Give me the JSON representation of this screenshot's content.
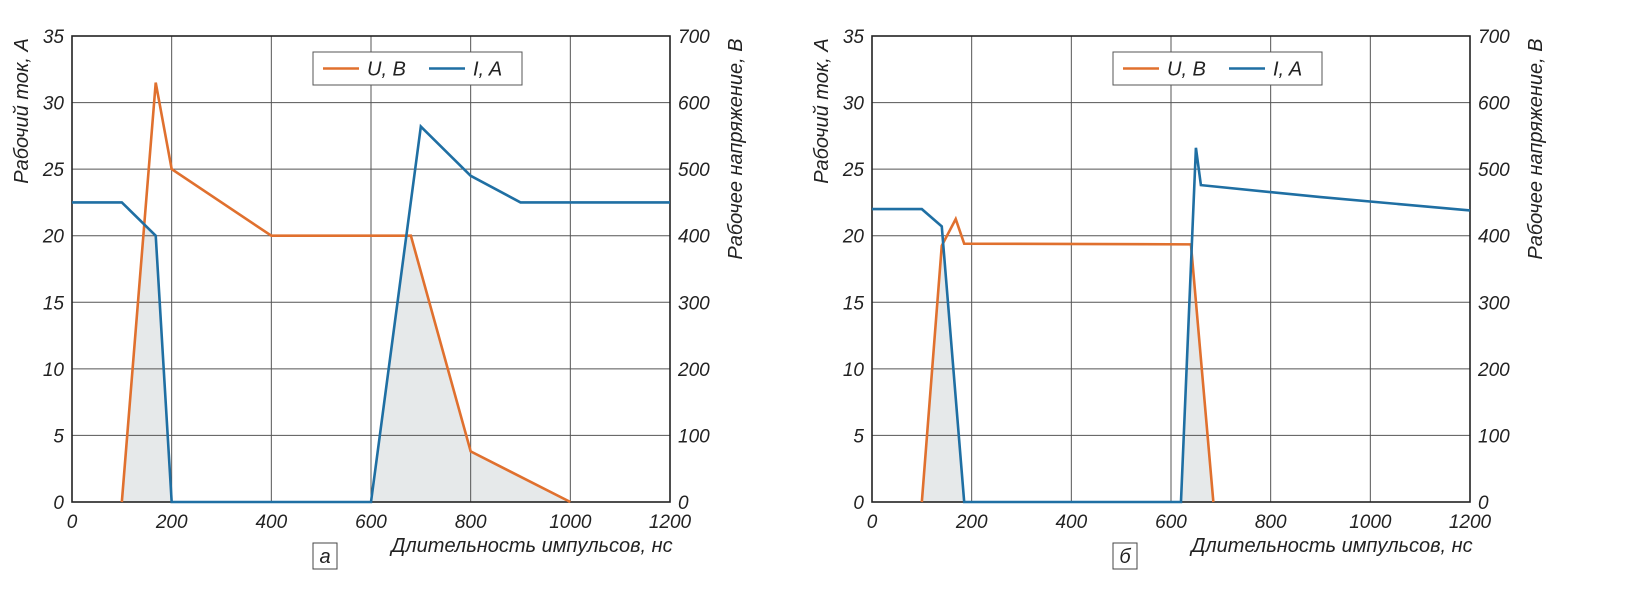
{
  "chart_data": [
    {
      "type": "line",
      "panel_label": "а",
      "xlabel": "Длительность импульсов, нс",
      "ylabel_left": "Рабочий ток, А",
      "ylabel_right": "Рабочее напряжение, В",
      "xlim": [
        0,
        1200
      ],
      "ylim_left": [
        0,
        35
      ],
      "ylim_right": [
        0,
        700
      ],
      "x_ticks": [
        "0",
        "200",
        "400",
        "600",
        "800",
        "1000",
        "1200"
      ],
      "y_left_ticks": [
        "0",
        "5",
        "10",
        "15",
        "20",
        "25",
        "30",
        "35"
      ],
      "y_right_ticks": [
        "0",
        "100",
        "200",
        "300",
        "400",
        "500",
        "600",
        "700"
      ],
      "grid": true,
      "legend_position": "top-center",
      "series": [
        {
          "name": "U, B",
          "axis": "right",
          "color": "#e0702e",
          "x": [
            100,
            168,
            200,
            400,
            680,
            800,
            1000
          ],
          "y": [
            0,
            630,
            500,
            400,
            400,
            76,
            0
          ]
        },
        {
          "name": "I, A",
          "axis": "left",
          "color": "#1f6fa3",
          "x": [
            0,
            100,
            168,
            200,
            600,
            700,
            800,
            900,
            1200
          ],
          "y": [
            22.5,
            22.5,
            20,
            0,
            0,
            28.2,
            24.5,
            22.5,
            22.5
          ]
        }
      ]
    },
    {
      "type": "line",
      "panel_label": "б",
      "xlabel": "Длительность импульсов, нс",
      "ylabel_left": "Рабочий ток, А",
      "ylabel_right": "Рабочее напряжение, В",
      "xlim": [
        0,
        1200
      ],
      "ylim_left": [
        0,
        35
      ],
      "ylim_right": [
        0,
        700
      ],
      "x_ticks": [
        "0",
        "200",
        "400",
        "600",
        "800",
        "1000",
        "1200"
      ],
      "y_left_ticks": [
        "0",
        "5",
        "10",
        "15",
        "20",
        "25",
        "30",
        "35"
      ],
      "y_right_ticks": [
        "0",
        "100",
        "200",
        "300",
        "400",
        "500",
        "600",
        "700"
      ],
      "grid": true,
      "legend_position": "top-center",
      "series": [
        {
          "name": "U, B",
          "axis": "right",
          "color": "#e0702e",
          "x": [
            100,
            140,
            168,
            185,
            640,
            685
          ],
          "y": [
            0,
            385,
            425,
            388,
            387,
            0
          ]
        },
        {
          "name": "I, A",
          "axis": "left",
          "color": "#1f6fa3",
          "x": [
            0,
            100,
            140,
            185,
            620,
            650,
            660,
            900,
            1200
          ],
          "y": [
            22,
            22,
            20.7,
            0,
            0,
            26.6,
            23.8,
            22.9,
            21.9
          ]
        }
      ]
    }
  ]
}
